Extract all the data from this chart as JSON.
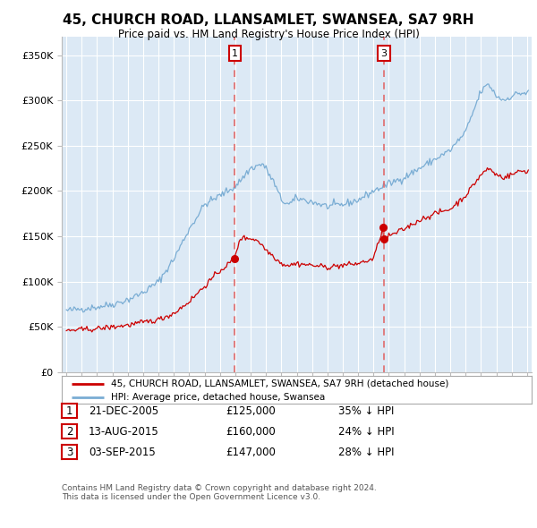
{
  "title": "45, CHURCH ROAD, LLANSAMLET, SWANSEA, SA7 9RH",
  "subtitle": "Price paid vs. HM Land Registry's House Price Index (HPI)",
  "ylabel_ticks": [
    "£0",
    "£50K",
    "£100K",
    "£150K",
    "£200K",
    "£250K",
    "£300K",
    "£350K"
  ],
  "ytick_values": [
    0,
    50000,
    100000,
    150000,
    200000,
    250000,
    300000,
    350000
  ],
  "ylim": [
    0,
    370000
  ],
  "xlim_start": 1994.7,
  "xlim_end": 2025.3,
  "background_color": "#ffffff",
  "plot_bg_color": "#dce9f5",
  "grid_color": "#ffffff",
  "red_line_color": "#cc0000",
  "blue_line_color": "#7aadd4",
  "marker_dot_color": "#cc0000",
  "vline_color": "#e06060",
  "legend_label_red": "45, CHURCH ROAD, LLANSAMLET, SWANSEA, SA7 9RH (detached house)",
  "legend_label_blue": "HPI: Average price, detached house, Swansea",
  "transactions": [
    {
      "label": "1",
      "date": "21-DEC-2005",
      "price": 125000,
      "price_str": "£125,000",
      "pct": "35%",
      "year_x": 2005.97
    },
    {
      "label": "2",
      "date": "13-AUG-2015",
      "price": 160000,
      "price_str": "£160,000",
      "pct": "24%",
      "year_x": 2015.62
    },
    {
      "label": "3",
      "date": "03-SEP-2015",
      "price": 147000,
      "price_str": "£147,000",
      "pct": "28%",
      "year_x": 2015.67
    }
  ],
  "show_markers_on_chart": [
    "1",
    "3"
  ],
  "footnote1": "Contains HM Land Registry data © Crown copyright and database right 2024.",
  "footnote2": "This data is licensed under the Open Government Licence v3.0."
}
